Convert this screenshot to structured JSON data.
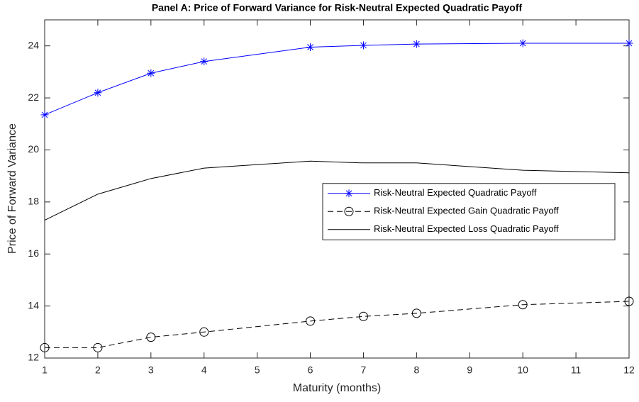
{
  "chart_data": {
    "type": "line",
    "title": "Panel A: Price of Forward Variance for Risk-Neutral Expected Quadratic Payoff",
    "x_label": "Maturity (months)",
    "y_label": "Price of Forward Variance",
    "x": [
      1,
      2,
      3,
      4,
      6,
      7,
      8,
      10,
      12
    ],
    "series": [
      {
        "name": "Risk-Neutral Expected Quadratic Payoff",
        "color": "#0000ff",
        "marker": "star",
        "dashed": false,
        "values": [
          21.35,
          22.2,
          22.95,
          23.4,
          23.95,
          24.02,
          24.07,
          24.1,
          24.1
        ]
      },
      {
        "name": "Risk-Neutral Expected Gain Quadratic Payoff",
        "color": "#000000",
        "marker": "circle",
        "dashed": true,
        "values": [
          12.4,
          12.4,
          12.8,
          13.0,
          13.42,
          13.6,
          13.72,
          14.05,
          14.18
        ]
      },
      {
        "name": "Risk-Neutral Expected Loss Quadratic Payoff",
        "color": "#000000",
        "marker": "none",
        "dashed": false,
        "values": [
          17.3,
          18.3,
          18.9,
          19.3,
          19.57,
          19.5,
          19.5,
          19.22,
          19.12
        ]
      }
    ],
    "xlim": [
      1,
      12
    ],
    "xticks": [
      1,
      2,
      3,
      4,
      5,
      6,
      7,
      8,
      9,
      10,
      11,
      12
    ],
    "ylim": [
      12,
      25
    ],
    "yticks": [
      12,
      14,
      16,
      18,
      20,
      22,
      24
    ],
    "grid": false,
    "legend_location": "east"
  }
}
